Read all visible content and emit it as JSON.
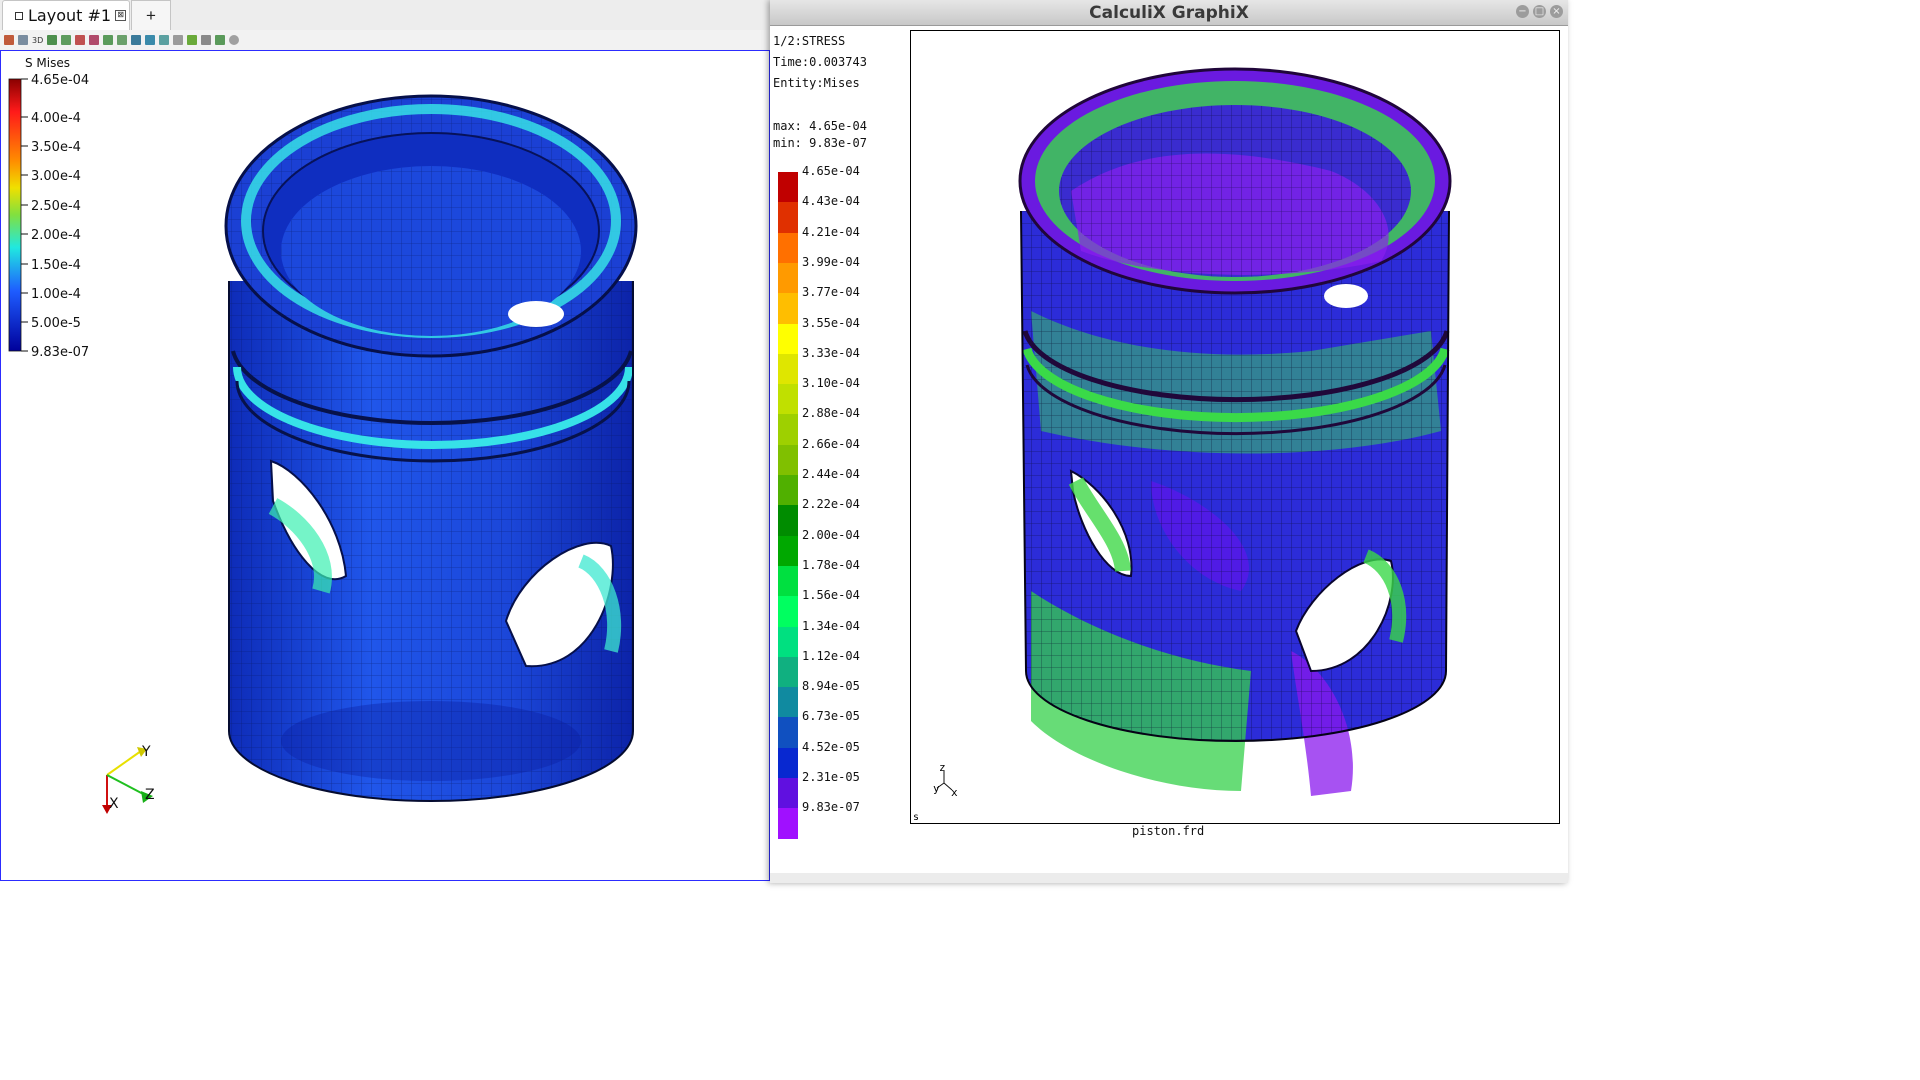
{
  "left": {
    "tabs": {
      "layout_label": "Layout #1",
      "close_glyph": "⊠",
      "add_label": "+"
    },
    "toolbar": {
      "mode_3d_label": "3D"
    },
    "legend": {
      "title": "S Mises",
      "labels": [
        "4.65e-04",
        "4.00e-4",
        "3.50e-4",
        "3.00e-4",
        "2.50e-4",
        "2.00e-4",
        "1.50e-4",
        "1.00e-4",
        "5.00e-5",
        "9.83e-07"
      ]
    },
    "axes": {
      "x": "X",
      "y": "Y",
      "z": "Z"
    }
  },
  "cgx": {
    "window_title": "CalculiX GraphiX",
    "buttons": {
      "minimize": "−",
      "maximize": "□",
      "close": "×"
    },
    "info": {
      "step": "1/2:STRESS",
      "time": "Time:0.003743",
      "entity": "Entity:Mises",
      "max": "max: 4.65e-04",
      "min": "min: 9.83e-07"
    },
    "legend_labels": [
      "4.65e-04",
      "4.43e-04",
      "4.21e-04",
      "3.99e-04",
      "3.77e-04",
      "3.55e-04",
      "3.33e-04",
      "3.10e-04",
      "2.88e-04",
      "2.66e-04",
      "2.44e-04",
      "2.22e-04",
      "2.00e-04",
      "1.78e-04",
      "1.56e-04",
      "1.34e-04",
      "1.12e-04",
      "8.94e-05",
      "6.73e-05",
      "4.52e-05",
      "2.31e-05",
      "9.83e-07"
    ],
    "legend_colors": [
      "#c00000",
      "#e03000",
      "#ff7000",
      "#ff9a00",
      "#ffbe00",
      "#ffff00",
      "#dfe600",
      "#c0e000",
      "#9ed000",
      "#80c000",
      "#50b000",
      "#008c00",
      "#00a800",
      "#00e040",
      "#00ff60",
      "#00e080",
      "#10b080",
      "#108aa0",
      "#1050c0",
      "#0828d0",
      "#6010e0",
      "#a010ff"
    ],
    "axes": {
      "x": "x",
      "y": "y",
      "z": "z"
    },
    "corner_label": "s",
    "filename": "piston.frd"
  },
  "colors": {
    "paraview_body": "#1f44e0",
    "paraview_dark": "#0b1ca0",
    "paraview_highlight": "#2bd8e8",
    "cgx_body": "#3a2be0",
    "cgx_green": "#38d848",
    "cgx_purple": "#8a18ee"
  }
}
